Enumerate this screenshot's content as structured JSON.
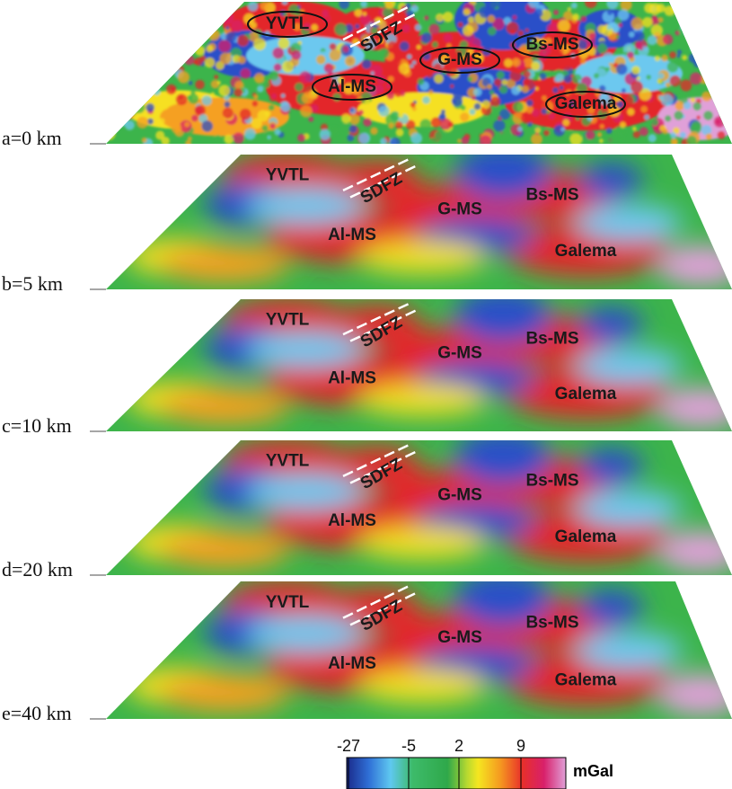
{
  "panels": [
    {
      "depth": "a=0 km",
      "labels": [
        "YVTL",
        "SDFZ",
        "G-MS",
        "Bs-MS",
        "Al-MS",
        "Galema"
      ]
    },
    {
      "depth": "b=5 km",
      "labels": [
        "YVTL",
        "SDFZ",
        "G-MS",
        "Bs-MS",
        "Al-MS",
        "Galema"
      ]
    },
    {
      "depth": "c=10 km",
      "labels": [
        "YVTL",
        "SDFZ",
        "G-MS",
        "Bs-MS",
        "Al-MS",
        "Galema"
      ]
    },
    {
      "depth": "d=20 km",
      "labels": [
        "YVTL",
        "SDFZ",
        "G-MS",
        "Bs-MS",
        "Al-MS",
        "Galema"
      ]
    },
    {
      "depth": "e=40 km",
      "labels": [
        "YVTL",
        "SDFZ",
        "G-MS",
        "Bs-MS",
        "Al-MS",
        "Galema"
      ]
    }
  ],
  "colorbar": {
    "ticks": [
      -27,
      -5,
      2,
      9
    ],
    "unit": "mGal"
  }
}
